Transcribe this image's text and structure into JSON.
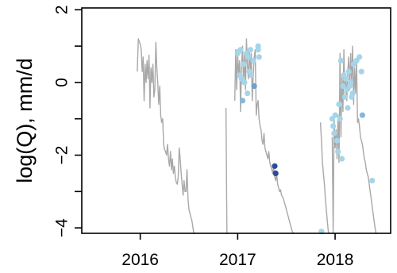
{
  "chart_data": {
    "type": "line",
    "title": "",
    "xlabel": "",
    "ylabel": "log(Q), mm/d",
    "xlim": [
      2015.4,
      2018.57
    ],
    "ylim": [
      -4.15,
      2.05
    ],
    "x_ticks": [
      2016,
      2017,
      2018
    ],
    "x_tick_labels": [
      "2016",
      "2017",
      "2018"
    ],
    "y_ticks": [
      -4,
      -2,
      0,
      2
    ],
    "y_tick_labels": [
      "−4",
      "−2",
      "0",
      "2"
    ],
    "y_minor_ticks": [
      -3,
      -1,
      1
    ],
    "grid": false,
    "legend": "none",
    "line_color": "#a8a8a8",
    "series": [
      {
        "role": "flow-segment",
        "x": [
          2015.97,
          2015.98,
          2016.0,
          2016.01,
          2016.02,
          2016.03,
          2016.04,
          2016.05,
          2016.06,
          2016.07,
          2016.08,
          2016.09,
          2016.1,
          2016.11,
          2016.12,
          2016.13,
          2016.14,
          2016.15,
          2016.16,
          2016.17,
          2016.18,
          2016.19,
          2016.2,
          2016.21,
          2016.22,
          2016.23,
          2016.24,
          2016.25,
          2016.26,
          2016.27,
          2016.28,
          2016.29,
          2016.3,
          2016.31,
          2016.32,
          2016.33,
          2016.34,
          2016.35,
          2016.36,
          2016.37,
          2016.38,
          2016.39,
          2016.4,
          2016.41,
          2016.42,
          2016.43,
          2016.44,
          2016.45,
          2016.46,
          2016.47,
          2016.48,
          2016.49,
          2016.5,
          2016.51,
          2016.52,
          2016.53,
          2016.55,
          2016.56,
          2016.57
        ],
        "y": [
          0.3,
          1.2,
          1.05,
          0.9,
          0.3,
          0.7,
          -0.5,
          0.5,
          0.0,
          0.6,
          0.1,
          0.75,
          -0.7,
          0.4,
          0.0,
          0.5,
          -0.4,
          -0.2,
          1.1,
          0.4,
          0.0,
          -0.6,
          -0.1,
          -0.9,
          -1.1,
          -1.0,
          -1.7,
          -1.85,
          -1.9,
          -2.0,
          -1.7,
          -2.1,
          -2.3,
          -1.9,
          -2.4,
          -2.1,
          -2.5,
          -2.3,
          -2.6,
          -2.75,
          -2.8,
          -2.6,
          -1.8,
          -2.1,
          -2.5,
          -2.8,
          -3.1,
          -2.7,
          -3.0,
          -3.0,
          -2.4,
          -3.2,
          -3.5,
          -3.6,
          -3.7,
          -3.8,
          -4.15,
          -4.15,
          -4.15
        ]
      },
      {
        "role": "flow-segment",
        "x": [
          2016.88,
          2016.89,
          2016.9
        ],
        "y": [
          -0.7,
          -4.15,
          -4.15
        ]
      },
      {
        "role": "flow-segment",
        "x": [
          2016.97,
          2016.98,
          2016.99,
          2017.0,
          2017.01,
          2017.02,
          2017.03,
          2017.04,
          2017.05,
          2017.06,
          2017.07,
          2017.08,
          2017.09,
          2017.1,
          2017.11,
          2017.12,
          2017.13,
          2017.14,
          2017.15,
          2017.16,
          2017.17,
          2017.18,
          2017.19,
          2017.2,
          2017.21,
          2017.22,
          2017.23,
          2017.24,
          2017.25,
          2017.26,
          2017.27,
          2017.28,
          2017.29,
          2017.3,
          2017.31,
          2017.32,
          2017.33,
          2017.34,
          2017.35,
          2017.36,
          2017.37,
          2017.38,
          2017.39,
          2017.4,
          2017.41,
          2017.42,
          2017.43,
          2017.44,
          2017.45,
          2017.46,
          2017.47,
          2017.48,
          2017.49,
          2017.5,
          2017.51,
          2017.52,
          2017.53,
          2017.54,
          2017.55,
          2017.56,
          2017.57,
          2017.58
        ],
        "y": [
          -0.5,
          0.9,
          -0.2,
          0.8,
          0.2,
          0.6,
          -0.8,
          0.4,
          1.0,
          0.0,
          0.8,
          -0.2,
          1.2,
          0.5,
          0.1,
          0.9,
          0.3,
          0.8,
          -0.5,
          0.2,
          0.7,
          0.9,
          -0.9,
          -0.6,
          -0.5,
          -1.0,
          -1.2,
          -1.3,
          -1.6,
          -1.7,
          -1.4,
          -1.8,
          -1.9,
          -2.0,
          -2.1,
          -1.9,
          -2.2,
          -2.3,
          -2.4,
          -2.5,
          -2.3,
          -2.6,
          -2.7,
          -2.5,
          -2.8,
          -2.9,
          -3.0,
          -2.95,
          -3.1,
          -3.15,
          -3.2,
          -3.3,
          -3.4,
          -3.5,
          -3.6,
          -3.7,
          -3.8,
          -3.9,
          -4.0,
          -4.1,
          -4.15,
          -4.15
        ]
      },
      {
        "role": "flow-segment",
        "x": [
          2017.85,
          2017.86,
          2017.87,
          2017.88,
          2017.89,
          2017.9,
          2017.91,
          2017.92,
          2017.93,
          2017.94
        ],
        "y": [
          -1.1,
          -1.6,
          -2.2,
          -2.5,
          -2.8,
          -3.2,
          -3.5,
          -3.8,
          -4.1,
          -4.15
        ]
      },
      {
        "role": "flow-segment",
        "x": [
          2017.97,
          2017.98,
          2017.99,
          2018.0,
          2018.01,
          2018.02,
          2018.03,
          2018.04,
          2018.05,
          2018.06,
          2018.07,
          2018.08,
          2018.09,
          2018.1,
          2018.11,
          2018.12,
          2018.13,
          2018.14,
          2018.15,
          2018.16,
          2018.17,
          2018.18,
          2018.19,
          2018.2,
          2018.21,
          2018.22,
          2018.23,
          2018.24,
          2018.25,
          2018.26,
          2018.27,
          2018.28,
          2018.29,
          2018.3,
          2018.31,
          2018.32,
          2018.33,
          2018.34,
          2018.35,
          2018.36,
          2018.37,
          2018.38,
          2018.39,
          2018.4,
          2018.41,
          2018.42,
          2018.43
        ],
        "y": [
          -1.5,
          -4.15,
          -1.0,
          -1.8,
          -1.3,
          -2.1,
          -0.9,
          -2.2,
          0.8,
          -1.5,
          0.2,
          -0.8,
          0.9,
          -0.3,
          0.1,
          -0.5,
          0.3,
          0.7,
          -0.2,
          0.8,
          0.0,
          1.0,
          -0.6,
          0.4,
          -0.3,
          0.6,
          -1.1,
          -1.0,
          -1.2,
          -1.5,
          -1.6,
          -1.7,
          -1.9,
          -2.1,
          -2.2,
          -2.4,
          -2.5,
          -2.6,
          -2.8,
          -3.0,
          -3.2,
          -3.4,
          -3.6,
          -3.8,
          -4.0,
          -4.15,
          -4.15
        ]
      }
    ],
    "points": [
      {
        "x": 2017.0,
        "y": 0.8,
        "color": "#a6d5e8"
      },
      {
        "x": 2017.01,
        "y": 0.85,
        "color": "#a6d5e8"
      },
      {
        "x": 2017.02,
        "y": 0.2,
        "color": "#a6d5e8"
      },
      {
        "x": 2017.03,
        "y": 0.9,
        "color": "#a6d5e8"
      },
      {
        "x": 2017.04,
        "y": 0.1,
        "color": "#a6d5e8"
      },
      {
        "x": 2017.05,
        "y": -0.5,
        "color": "#84bad8"
      },
      {
        "x": 2017.06,
        "y": 0.5,
        "color": "#a6d5e8"
      },
      {
        "x": 2017.07,
        "y": 0.0,
        "color": "#a6d5e8"
      },
      {
        "x": 2017.09,
        "y": 0.8,
        "color": "#a6d5e8"
      },
      {
        "x": 2017.1,
        "y": -0.3,
        "color": "#a6d5e8"
      },
      {
        "x": 2017.11,
        "y": 0.7,
        "color": "#a6d5e8"
      },
      {
        "x": 2017.12,
        "y": 0.3,
        "color": "#a6d5e8"
      },
      {
        "x": 2017.13,
        "y": 0.9,
        "color": "#a6d5e8"
      },
      {
        "x": 2017.14,
        "y": 0.2,
        "color": "#a6d5e8"
      },
      {
        "x": 2017.16,
        "y": 0.6,
        "color": "#a6d5e8"
      },
      {
        "x": 2017.17,
        "y": -0.1,
        "color": "#6f9fd0"
      },
      {
        "x": 2017.21,
        "y": 1.0,
        "color": "#a6d5e8"
      },
      {
        "x": 2017.22,
        "y": 0.7,
        "color": "#a6d5e8"
      },
      {
        "x": 2017.21,
        "y": 0.9,
        "color": "#a6d5e8"
      },
      {
        "x": 2017.38,
        "y": -2.3,
        "color": "#2b4a9c"
      },
      {
        "x": 2017.39,
        "y": -2.5,
        "color": "#2b4a9c"
      },
      {
        "x": 2017.97,
        "y": -1.0,
        "color": "#a6d5e8"
      },
      {
        "x": 2017.98,
        "y": -1.2,
        "color": "#a6d5e8"
      },
      {
        "x": 2017.99,
        "y": -1.4,
        "color": "#a6d5e8"
      },
      {
        "x": 2018.0,
        "y": -0.9,
        "color": "#a6d5e8"
      },
      {
        "x": 2017.86,
        "y": -4.1,
        "color": "#a6d5e8"
      },
      {
        "x": 2018.02,
        "y": -1.6,
        "color": "#a6d5e8"
      },
      {
        "x": 2018.03,
        "y": -1.9,
        "color": "#a6d5e8"
      },
      {
        "x": 2018.04,
        "y": -0.6,
        "color": "#a6d5e8"
      },
      {
        "x": 2018.05,
        "y": -1.0,
        "color": "#a6d5e8"
      },
      {
        "x": 2018.06,
        "y": 0.6,
        "color": "#a6d5e8"
      },
      {
        "x": 2018.07,
        "y": -2.1,
        "color": "#a6d5e8"
      },
      {
        "x": 2018.08,
        "y": -0.1,
        "color": "#a6d5e8"
      },
      {
        "x": 2018.09,
        "y": 0.2,
        "color": "#a6d5e8"
      },
      {
        "x": 2018.1,
        "y": -0.4,
        "color": "#a6d5e8"
      },
      {
        "x": 2018.11,
        "y": 0.1,
        "color": "#a6d5e8"
      },
      {
        "x": 2018.12,
        "y": -0.2,
        "color": "#a6d5e8"
      },
      {
        "x": 2018.13,
        "y": -0.7,
        "color": "#a6d5e8"
      },
      {
        "x": 2018.14,
        "y": 0.3,
        "color": "#a6d5e8"
      },
      {
        "x": 2018.15,
        "y": -0.1,
        "color": "#a6d5e8"
      },
      {
        "x": 2018.16,
        "y": 0.0,
        "color": "#a6d5e8"
      },
      {
        "x": 2018.17,
        "y": -0.4,
        "color": "#a6d5e8"
      },
      {
        "x": 2018.18,
        "y": -0.3,
        "color": "#a6d5e8"
      },
      {
        "x": 2018.19,
        "y": 0.5,
        "color": "#a6d5e8"
      },
      {
        "x": 2018.22,
        "y": 0.6,
        "color": "#a6d5e8"
      },
      {
        "x": 2018.25,
        "y": 0.7,
        "color": "#a6d5e8"
      },
      {
        "x": 2018.27,
        "y": 0.3,
        "color": "#a6d5e8"
      },
      {
        "x": 2018.28,
        "y": -0.9,
        "color": "#84bad8"
      },
      {
        "x": 2018.38,
        "y": -2.7,
        "color": "#a6d5e8"
      }
    ]
  }
}
